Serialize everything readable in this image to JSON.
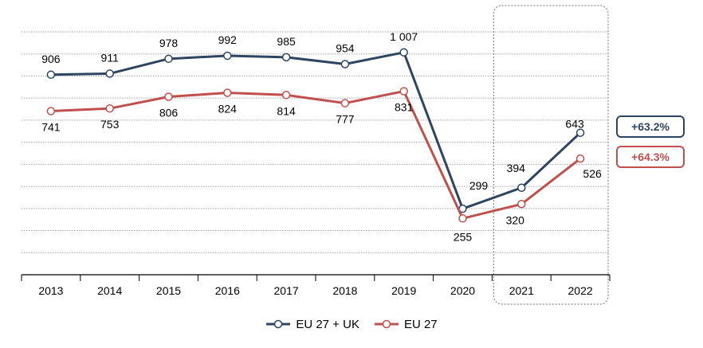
{
  "chart_data": {
    "type": "line",
    "categories": [
      "2013",
      "2014",
      "2015",
      "2016",
      "2017",
      "2018",
      "2019",
      "2020",
      "2021",
      "2022"
    ],
    "series": [
      {
        "name": "EU 27 + UK",
        "color": "#2e4562",
        "values": [
          906,
          911,
          978,
          992,
          985,
          954,
          1007,
          299,
          394,
          643
        ],
        "value_labels": [
          "906",
          "911",
          "978",
          "992",
          "985",
          "954",
          "1 007",
          "299",
          "394",
          "643"
        ],
        "change_label": "+63.2%"
      },
      {
        "name": "EU 27",
        "color": "#c0504d",
        "values": [
          741,
          753,
          806,
          824,
          814,
          777,
          831,
          255,
          320,
          526
        ],
        "value_labels": [
          "741",
          "753",
          "806",
          "824",
          "814",
          "777",
          "831",
          "255",
          "320",
          "526"
        ],
        "change_label": "+64.3%"
      }
    ],
    "ylim": [
      0,
      1100
    ],
    "grid": true,
    "legend": "bottom-center",
    "highlight_categories": [
      "2021",
      "2022"
    ],
    "title": "",
    "xlabel": "",
    "ylabel": ""
  }
}
